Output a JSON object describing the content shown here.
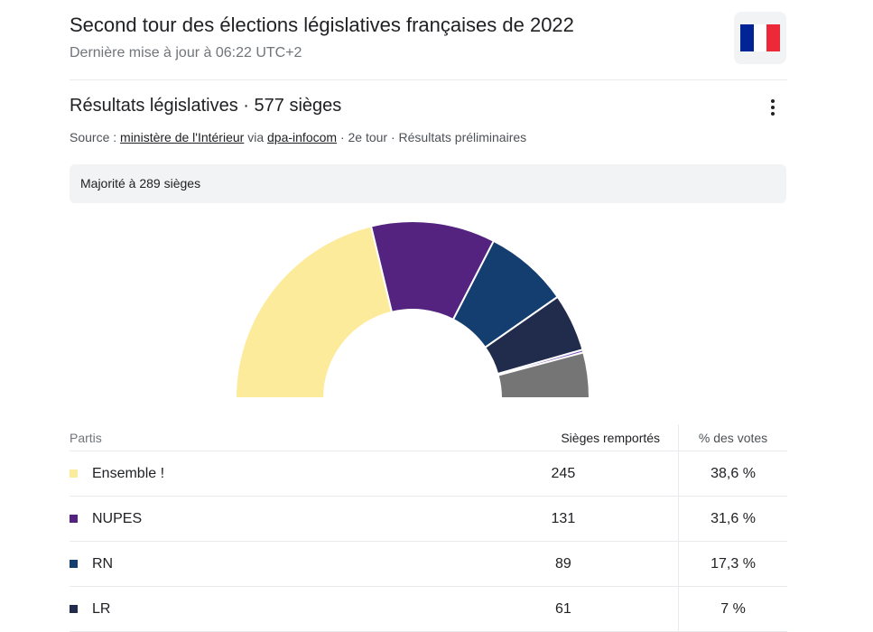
{
  "header": {
    "title": "Second tour des élections législatives françaises de 2022",
    "updated": "Dernière mise à jour à 06:22 UTC+2"
  },
  "flag": {
    "icon": "france-flag-icon",
    "colors": [
      "#002395",
      "#ffffff",
      "#ed2939"
    ]
  },
  "results": {
    "title": "Résultats législatives · 577 sièges",
    "menu_icon": "more-vert-icon",
    "source_prefix": "Source : ",
    "source_link_1": "ministère de l'Intérieur",
    "source_via": " via ",
    "source_link_2": "dpa-infocom",
    "source_suffix": " · 2e tour · Résultats préliminaires",
    "majority": "Majorité à 289 sièges"
  },
  "table": {
    "headers": {
      "party": "Partis",
      "seats": "Sièges remportés",
      "votes": "% des votes"
    },
    "rows": [
      {
        "party": "Ensemble !",
        "seats": "245",
        "votes": "38,6 %",
        "color": "#fdeb9c"
      },
      {
        "party": "NUPES",
        "seats": "131",
        "votes": "31,6 %",
        "color": "#53237f"
      },
      {
        "party": "RN",
        "seats": "89",
        "votes": "17,3 %",
        "color": "#153e70"
      },
      {
        "party": "LR",
        "seats": "61",
        "votes": "7 %",
        "color": "#212c4d"
      }
    ]
  },
  "chart_data": {
    "type": "pie",
    "layout": "hemicycle",
    "total_seats": 577,
    "majority": 289,
    "segments": [
      {
        "name": "Ensemble !",
        "seats": 245,
        "color": "#fdeb9c"
      },
      {
        "name": "NUPES",
        "seats": 131,
        "color": "#53237f"
      },
      {
        "name": "RN",
        "seats": 89,
        "color": "#153e70"
      },
      {
        "name": "LR",
        "seats": 61,
        "color": "#212c4d"
      },
      {
        "name": "",
        "seats": 3,
        "color": "#7e57c2"
      },
      {
        "name": "",
        "seats": 48,
        "color": "#757575"
      }
    ]
  }
}
